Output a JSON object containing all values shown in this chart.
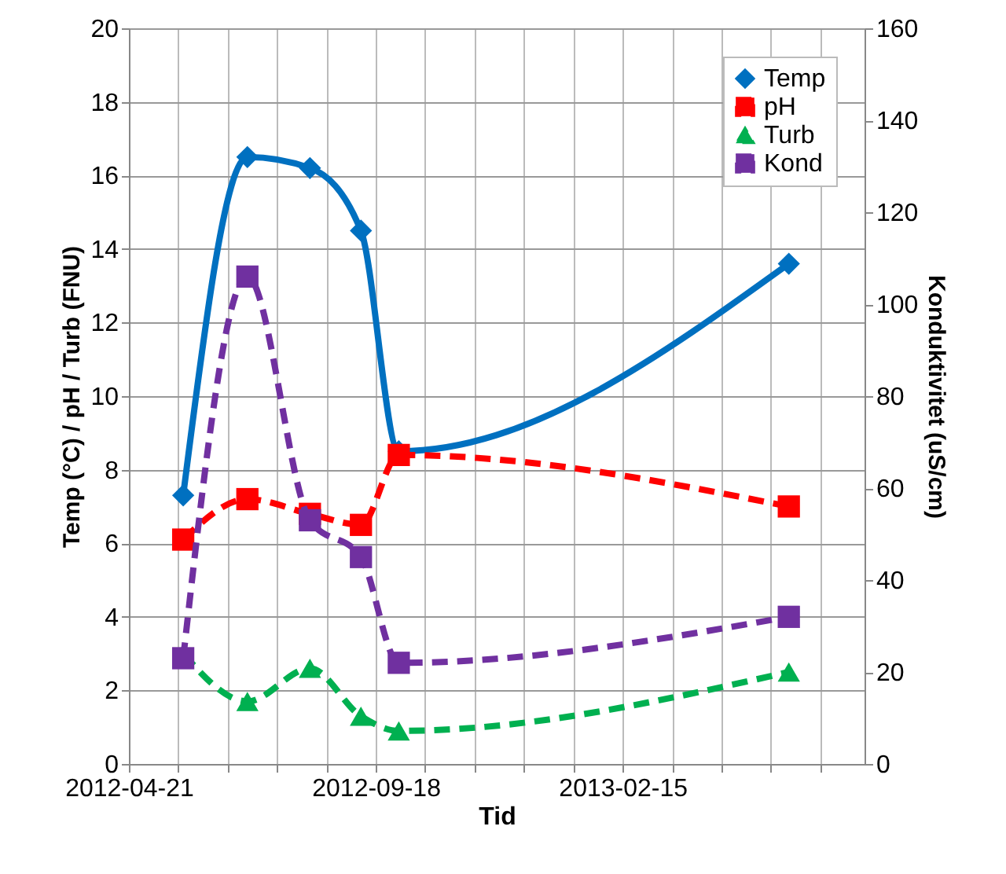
{
  "chart_data": {
    "type": "line",
    "xlabel": "Tid",
    "ylabel": "Temp (°C) / pH / Turb (FNU)",
    "y2label": "Konduktivitet (uS/cm)",
    "x": [
      "2012-05-24",
      "2012-07-02",
      "2012-08-09",
      "2012-09-09",
      "2012-10-02",
      "2013-05-27"
    ],
    "xlim": [
      "2012-04-21",
      "2013-07-12"
    ],
    "xticks": [
      {
        "value": "2012-04-21",
        "label": "2012-04-21"
      },
      {
        "value": "2012-05-21",
        "label": null
      },
      {
        "value": "2012-06-20",
        "label": null
      },
      {
        "value": "2012-07-20",
        "label": null
      },
      {
        "value": "2012-08-19",
        "label": null
      },
      {
        "value": "2012-09-18",
        "label": "2012-09-18"
      },
      {
        "value": "2012-10-18",
        "label": null
      },
      {
        "value": "2012-11-17",
        "label": null
      },
      {
        "value": "2012-12-17",
        "label": null
      },
      {
        "value": "2013-01-16",
        "label": null
      },
      {
        "value": "2013-02-15",
        "label": "2013-02-15"
      },
      {
        "value": "2013-03-17",
        "label": null
      },
      {
        "value": "2013-04-16",
        "label": null
      },
      {
        "value": "2013-05-16",
        "label": null
      },
      {
        "value": "2013-06-15",
        "label": null
      }
    ],
    "ylim": [
      0,
      20
    ],
    "yticks": [
      0,
      2,
      4,
      6,
      8,
      10,
      12,
      14,
      16,
      18,
      20
    ],
    "y2lim": [
      0,
      160
    ],
    "y2ticks": [
      0,
      20,
      40,
      60,
      80,
      100,
      120,
      140,
      160
    ],
    "grid": true,
    "legend": "top right",
    "series": [
      {
        "name": "Temp",
        "color": "#0070c0",
        "marker": "diamond",
        "line_style": "solid",
        "values": [
          7.3,
          16.5,
          16.2,
          14.5,
          8.5,
          13.6
        ]
      },
      {
        "name": "pH",
        "color": "#ff0000",
        "marker": "square",
        "line_style": "dashed",
        "values": [
          6.1,
          7.2,
          6.8,
          6.5,
          8.4,
          7.0
        ]
      },
      {
        "name": "Turb",
        "color": "#00b050",
        "marker": "triangle",
        "line_style": "dashed",
        "values": [
          3.0,
          1.7,
          2.6,
          1.3,
          0.9,
          2.5
        ]
      },
      {
        "name": "Kond",
        "color": "#7030a0",
        "marker": "square",
        "line_style": "dashed",
        "axis": "y2",
        "values": [
          23,
          106,
          53,
          45,
          22,
          32
        ]
      }
    ]
  }
}
